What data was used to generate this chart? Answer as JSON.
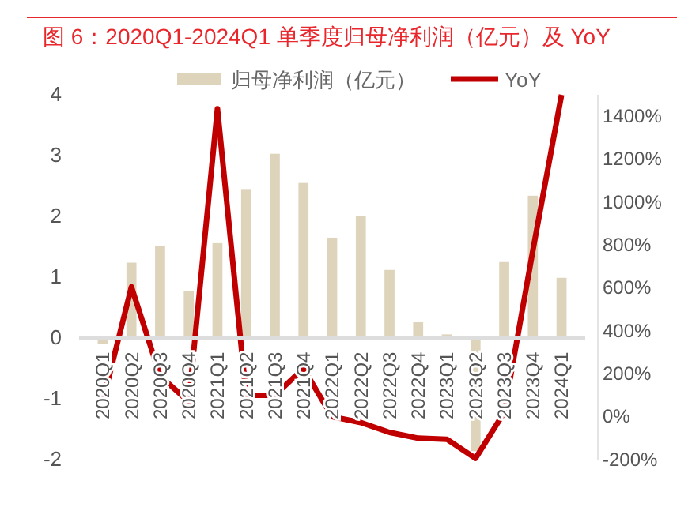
{
  "chart_data": {
    "type": "bar",
    "title": "图 6：2020Q1-2024Q1 单季度归母净利润（亿元）及 YoY",
    "categories": [
      "2020Q1",
      "2020Q2",
      "2020Q3",
      "2020Q4",
      "2021Q1",
      "2021Q2",
      "2021Q3",
      "2021Q4",
      "2022Q1",
      "2022Q2",
      "2022Q3",
      "2022Q4",
      "2023Q1",
      "2023Q2",
      "2023Q3",
      "2023Q4",
      "2024Q1"
    ],
    "series": [
      {
        "name": "归母净利润（亿元）",
        "color": "#ded4bc",
        "values": [
          -0.1,
          1.24,
          1.51,
          0.77,
          1.56,
          2.45,
          3.03,
          2.55,
          1.65,
          2.01,
          1.12,
          0.26,
          0.06,
          -1.86,
          1.25,
          2.34,
          0.99
        ]
      },
      {
        "name": "YoY",
        "type": "line",
        "axis": "y2",
        "color": "#c00000",
        "values": [
          70,
          605,
          190,
          70,
          1435,
          100,
          100,
          225,
          0,
          -27,
          -73,
          -100,
          -105,
          -194,
          20,
          775,
          1500
        ]
      }
    ],
    "ylim": [
      -2,
      4
    ],
    "yticks": [
      -2,
      -1,
      0,
      1,
      2,
      3,
      4
    ],
    "y2lim": [
      -200,
      1500
    ],
    "y2ticks": [
      {
        "value": -200,
        "label": "-200%"
      },
      {
        "value": 0,
        "label": "0%"
      },
      {
        "value": 200,
        "label": "200%"
      },
      {
        "value": 400,
        "label": "400%"
      },
      {
        "value": 600,
        "label": "600%"
      },
      {
        "value": 800,
        "label": "800%"
      },
      {
        "value": 1000,
        "label": "1000%"
      },
      {
        "value": 1200,
        "label": "1200%"
      },
      {
        "value": 1400,
        "label": "1400%"
      }
    ],
    "legend": "top",
    "grid": false,
    "line_style": "solid",
    "marker": "none"
  }
}
